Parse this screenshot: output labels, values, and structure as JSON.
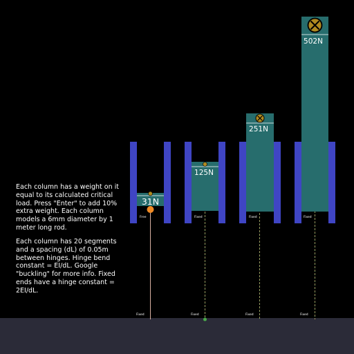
{
  "colors": {
    "background": "#000000",
    "ground": "#2b2b38",
    "wall": "#3f45c4",
    "weight": "#276d6d",
    "rod_fixed": "#b65a3c",
    "rod_dashed": "#7fb86a",
    "hinge_orange": "#f08a24",
    "hinge_green": "#49a84a"
  },
  "info": {
    "paragraph1": "Each column has a weight on it equal to its calculated critical load. Press \"Enter\" to add 10% extra weight. Each column models a 6mm diameter by 1 meter long rod.",
    "paragraph2": "Each column has 20 segments and a spacing (dL) of 0.05m between hinges. Hinge bend constant = EI/dL. Google \"buckling\" for more info. Fixed ends have a hinge constant = 2EI/dL."
  },
  "columns": [
    {
      "load_label": "31N",
      "top_end_label": "Free",
      "bottom_end_label": "Fixed",
      "load_newtons": 31,
      "marker_icon": "circle-cross-icon"
    },
    {
      "load_label": "125N",
      "top_end_label": "Fixed",
      "bottom_end_label": "Fixed",
      "load_newtons": 125,
      "marker_icon": "circle-cross-icon"
    },
    {
      "load_label": "251N",
      "top_end_label": "Fixed",
      "bottom_end_label": "Fixed",
      "load_newtons": 251,
      "marker_icon": "circle-cross-icon"
    },
    {
      "load_label": "502N",
      "top_end_label": "Fixed",
      "bottom_end_label": "Fixed",
      "load_newtons": 502,
      "marker_icon": "circle-cross-icon"
    }
  ]
}
